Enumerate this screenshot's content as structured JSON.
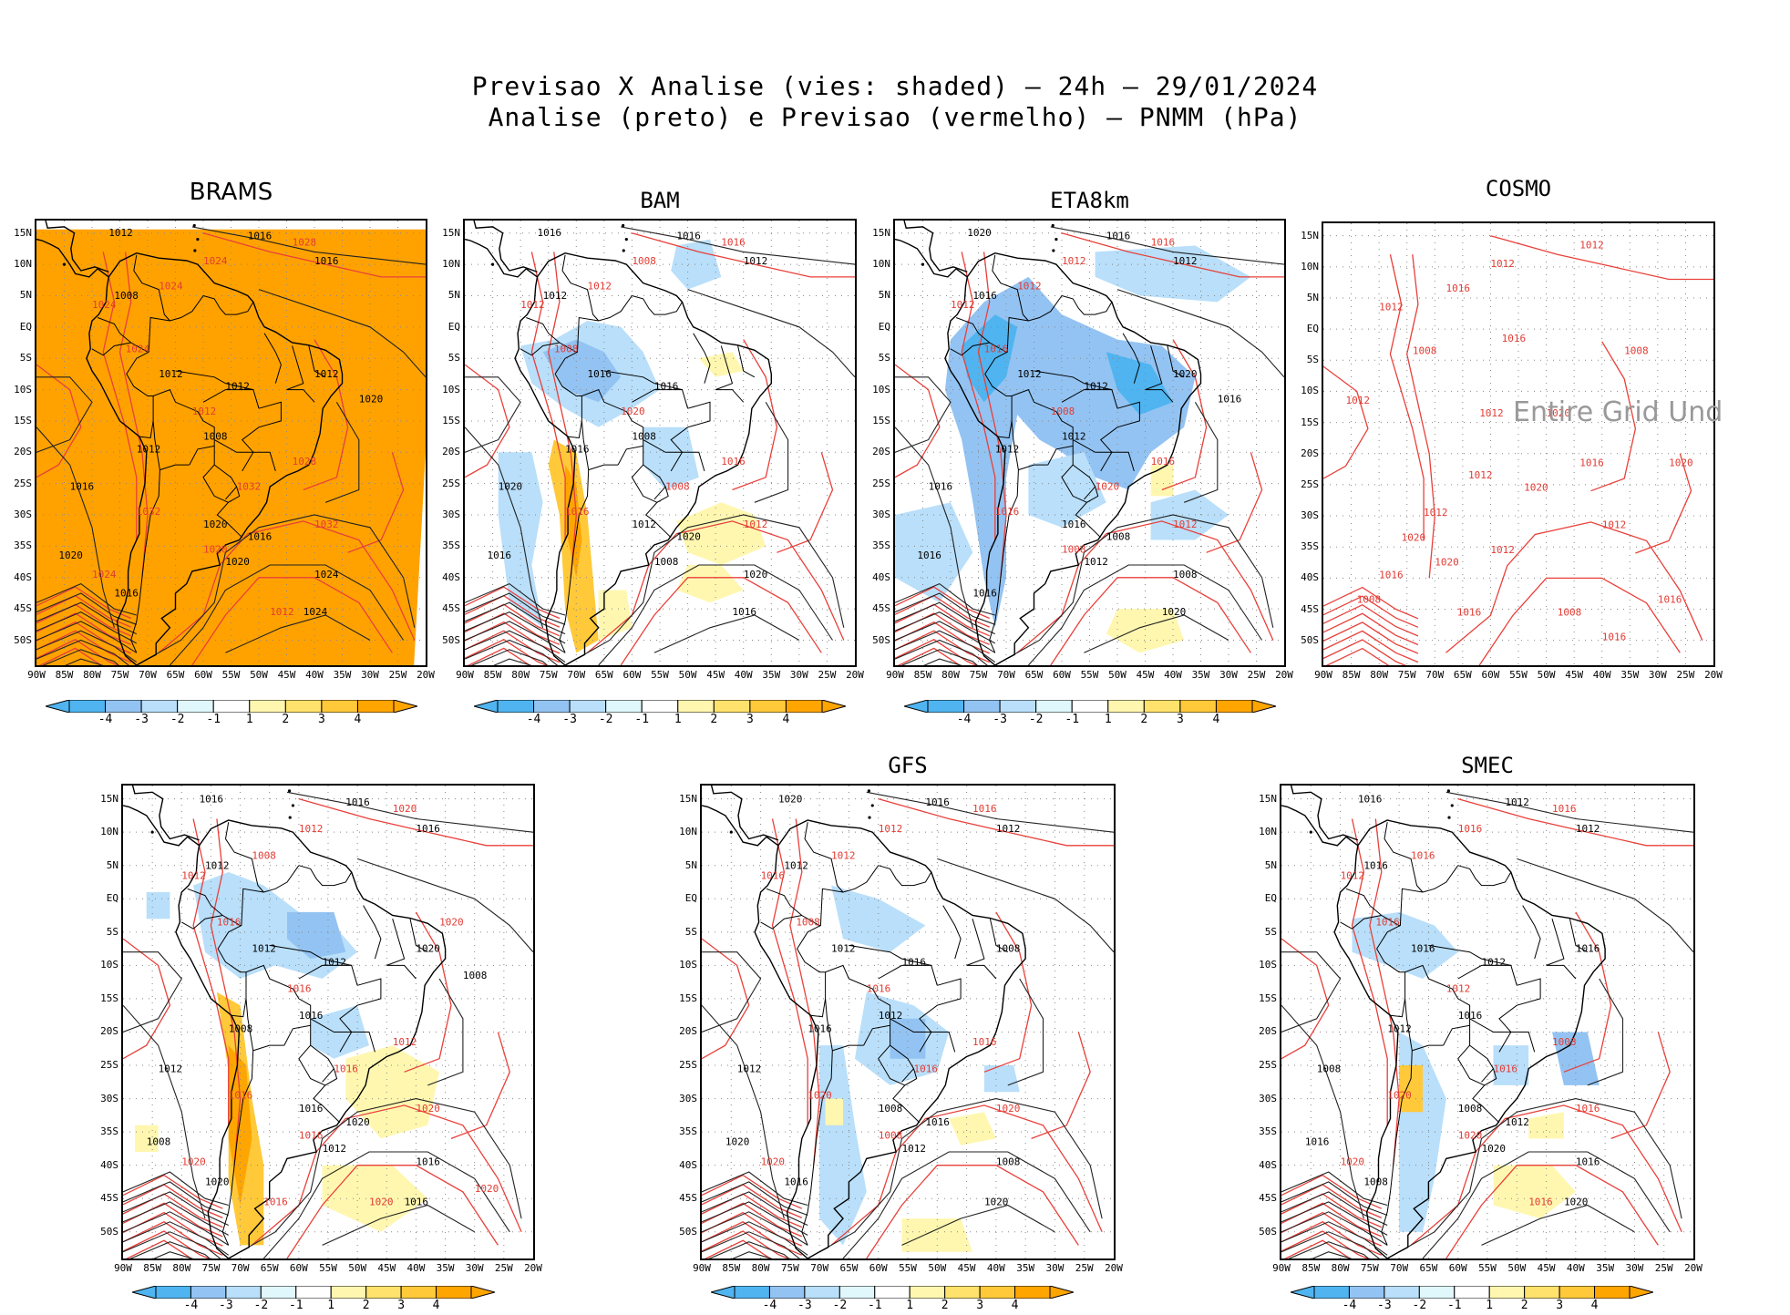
{
  "header": {
    "line1": "Previsao X Analise (vies: shaded) – 24h – 29/01/2024",
    "line2": "Analise (preto) e Previsao (vermelho) – PNMM (hPa)"
  },
  "axes": {
    "lat_labels": [
      "15N",
      "10N",
      "5N",
      "EQ",
      "5S",
      "10S",
      "15S",
      "20S",
      "25S",
      "30S",
      "35S",
      "40S",
      "45S",
      "50S"
    ],
    "lon_labels": [
      "90W",
      "85W",
      "80W",
      "75W",
      "70W",
      "65W",
      "60W",
      "55W",
      "50W",
      "45W",
      "40W",
      "35W",
      "30W",
      "25W",
      "20W"
    ]
  },
  "colorbar": {
    "labels": [
      "-4",
      "-3",
      "-2",
      "-1",
      "1",
      "2",
      "3",
      "4"
    ],
    "colors": [
      "#4fb4f0",
      "#93c3f2",
      "#b9dffa",
      "#e0f7fb",
      "#ffffff",
      "#fff7b0",
      "#ffe26c",
      "#ffc93a",
      "#ffa500"
    ],
    "left_arrow_color": "#4fb4f0",
    "right_arrow_color": "#ffa500"
  },
  "panels": [
    {
      "title": "BRAMS",
      "shade": "orange",
      "colorbar": true,
      "black_labels": [
        "1012",
        "1016",
        "1016",
        "1008",
        "1012",
        "1012",
        "1008",
        "1012",
        "1016",
        "1020",
        "1016",
        "1020",
        "1020",
        "1024",
        "1024",
        "1016",
        "1012",
        "1020"
      ],
      "red_labels": [
        "1028",
        "1024",
        "1024",
        "1024",
        "1024",
        "1012",
        "1028",
        "1032",
        "1032",
        "1032",
        "1020",
        "1024",
        "1012"
      ]
    },
    {
      "title": "BAM",
      "shade": "bam",
      "colorbar": true,
      "black_labels": [
        "1016",
        "1016",
        "1012",
        "1012",
        "1016",
        "1016",
        "1008",
        "1016",
        "1020",
        "1012",
        "1020",
        "1016",
        "1008",
        "1020",
        "1016"
      ],
      "red_labels": [
        "1016",
        "1008",
        "1012",
        "1012",
        "1008",
        "1020",
        "1016",
        "1008",
        "1016",
        "1012"
      ]
    },
    {
      "title": "ETA8km",
      "shade": "eta",
      "colorbar": true,
      "black_labels": [
        "1020",
        "1016",
        "1012",
        "1016",
        "1012",
        "1012",
        "1012",
        "1012",
        "1016",
        "1016",
        "1008",
        "1016",
        "1012",
        "1008",
        "1020",
        "1016",
        "1020",
        "1016"
      ],
      "red_labels": [
        "1016",
        "1012",
        "1012",
        "1012",
        "1016",
        "1008",
        "1016",
        "1020",
        "1016",
        "1012",
        "1008"
      ]
    },
    {
      "title": "COSMO",
      "shade": "none",
      "colorbar": false,
      "overlay": "Entire Grid Und",
      "black_labels": [],
      "red_labels": [
        "1012",
        "1012",
        "1016",
        "1012",
        "1008",
        "1012",
        "1016",
        "1020",
        "1012",
        "1012",
        "1012",
        "1016",
        "1008",
        "1016",
        "1016",
        "1008",
        "1020",
        "1012",
        "1016",
        "1012",
        "1020",
        "1020",
        "1020",
        "1008",
        "1016"
      ]
    },
    {
      "title": "",
      "shade": "row2a",
      "colorbar": true,
      "black_labels": [
        "1016",
        "1016",
        "1016",
        "1012",
        "1012",
        "1012",
        "1016",
        "1008",
        "1012",
        "1016",
        "1020",
        "1008",
        "1012",
        "1016",
        "1016",
        "1020",
        "1020",
        "1008"
      ],
      "red_labels": [
        "1020",
        "1012",
        "1008",
        "1012",
        "1016",
        "1016",
        "1012",
        "1016",
        "1016",
        "1020",
        "1016",
        "1020",
        "1020",
        "1020",
        "1016",
        "1020"
      ]
    },
    {
      "title": "GFS",
      "shade": "gfs",
      "colorbar": true,
      "black_labels": [
        "1020",
        "1016",
        "1012",
        "1012",
        "1012",
        "1016",
        "1012",
        "1016",
        "1012",
        "1008",
        "1016",
        "1020",
        "1012",
        "1008",
        "1020",
        "1016",
        "1008"
      ],
      "red_labels": [
        "1016",
        "1012",
        "1012",
        "1016",
        "1008",
        "1016",
        "1016",
        "1016",
        "1020",
        "1020",
        "1008",
        "1020"
      ]
    },
    {
      "title": "SMEC",
      "shade": "smec",
      "colorbar": true,
      "black_labels": [
        "1016",
        "1012",
        "1012",
        "1016",
        "1016",
        "1012",
        "1016",
        "1012",
        "1008",
        "1008",
        "1012",
        "1016",
        "1020",
        "1016",
        "1020",
        "1008",
        "1016"
      ],
      "red_labels": [
        "1016",
        "1016",
        "1016",
        "1012",
        "1016",
        "1012",
        "1008",
        "1016",
        "1020",
        "1016",
        "1020",
        "1020",
        "1016"
      ]
    }
  ]
}
